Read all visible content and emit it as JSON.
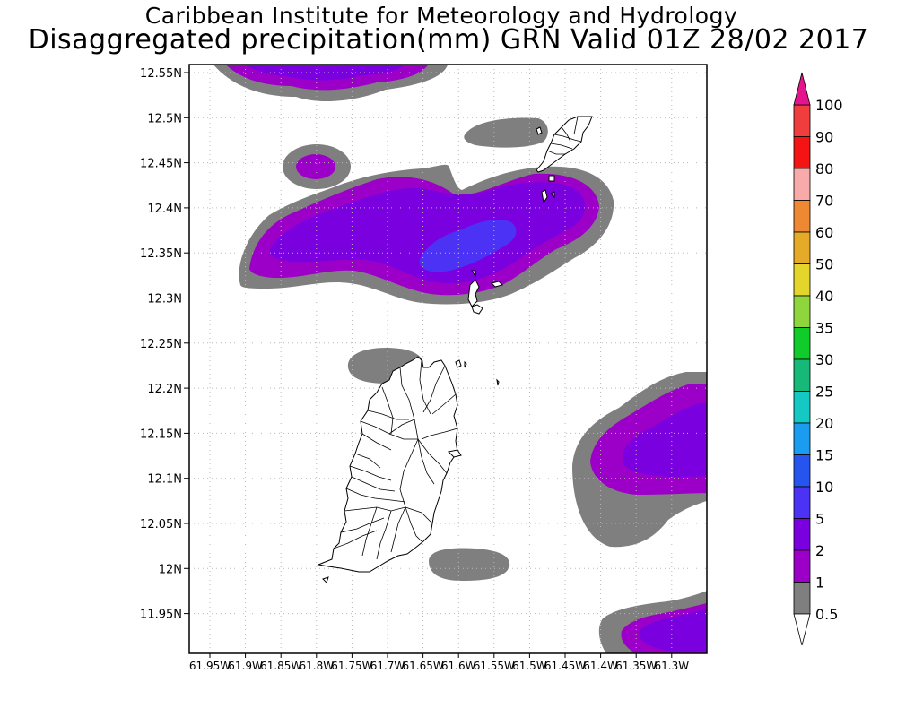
{
  "title": "Caribbean Institute for Meteorology and Hydrology",
  "subtitle": "Disaggregated precipitation(mm) GRN Valid 01Z 28/02 2017",
  "lat_labels": [
    "12.55N",
    "12.5N",
    "12.45N",
    "12.4N",
    "12.35N",
    "12.3N",
    "12.25N",
    "12.2N",
    "12.15N",
    "12.1N",
    "12.05N",
    "12N",
    "11.95N"
  ],
  "lon_labels": [
    "61.95W",
    "61.9W",
    "61.85W",
    "61.8W",
    "61.75W",
    "61.7W",
    "61.65W",
    "61.6W",
    "61.55W",
    "61.5W",
    "61.45W",
    "61.4W",
    "61.35W",
    "61.3W"
  ],
  "legend": [
    {
      "label": "0.5",
      "color": "#ffffff"
    },
    {
      "label": "1",
      "color": "#7f7f7f"
    },
    {
      "label": "2",
      "color": "#9c00c8"
    },
    {
      "label": "5",
      "color": "#7a00e0"
    },
    {
      "label": "10",
      "color": "#4b32f5"
    },
    {
      "label": "15",
      "color": "#2555ee"
    },
    {
      "label": "20",
      "color": "#1a9cf0"
    },
    {
      "label": "25",
      "color": "#14c8c4"
    },
    {
      "label": "30",
      "color": "#16b978"
    },
    {
      "label": "35",
      "color": "#0fcc2a"
    },
    {
      "label": "40",
      "color": "#8ed63c"
    },
    {
      "label": "50",
      "color": "#e3d52c"
    },
    {
      "label": "60",
      "color": "#e4aa28"
    },
    {
      "label": "70",
      "color": "#ee8832"
    },
    {
      "label": "80",
      "color": "#f8aaaa"
    },
    {
      "label": "90",
      "color": "#f51414"
    },
    {
      "label": "100",
      "color": "#f03e3e"
    }
  ],
  "legend_top_color": "#e6148c",
  "colors": {
    "light_shade": "#7f7f7f",
    "purple": "#9c00c8",
    "violet": "#7a00e0",
    "blue": "#4b32f5"
  }
}
